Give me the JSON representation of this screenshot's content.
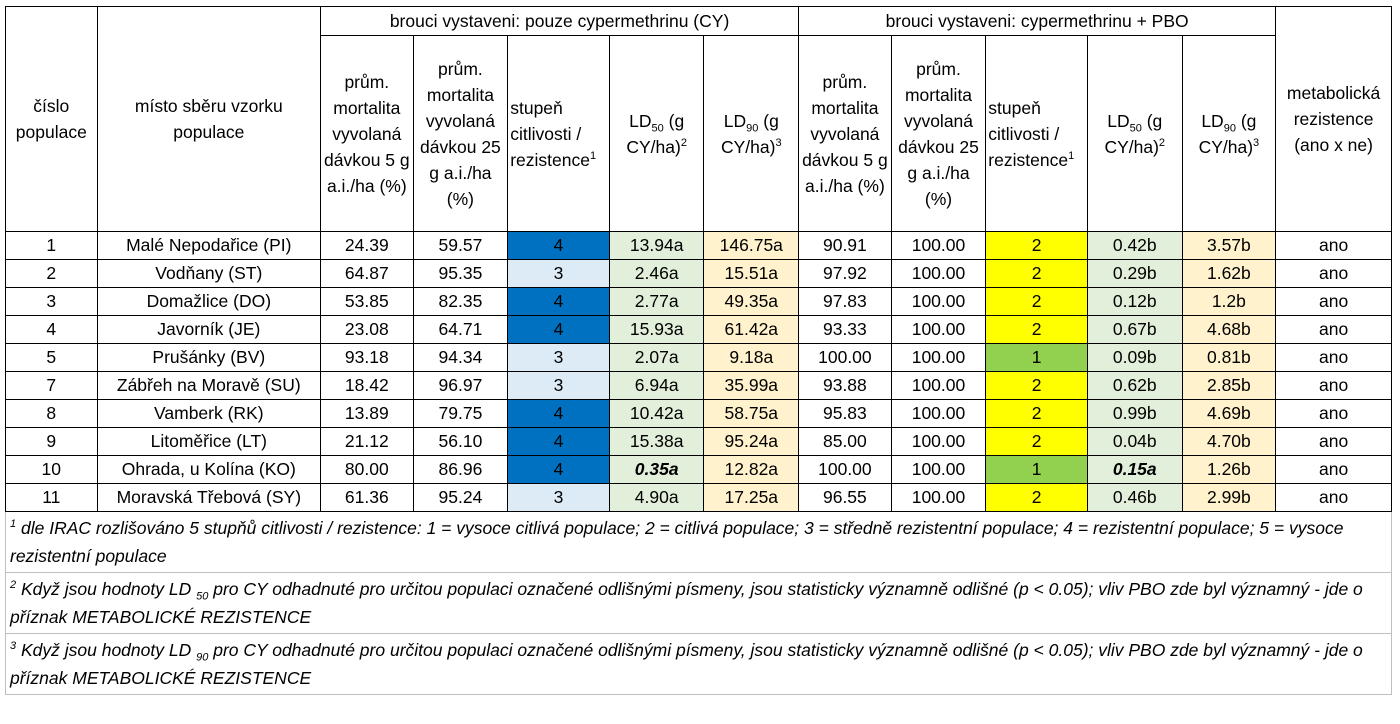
{
  "header": {
    "group_cy": "brouci vystaveni: pouze cypermethrinu (CY)",
    "group_pbo": "brouci vystaveni: cypermethrinu + PBO",
    "col_num": "číslo populace",
    "col_place": "místo sběru vzorku populace",
    "col_mort5": "prům. mortalita vyvolaná dávkou 5 g a.i./ha (%)",
    "col_mort25": "prům. mortalita vyvolaná dávkou 25 g a.i./ha (%)",
    "col_grade": "stupeň citlivosti / rezistence",
    "col_grade_sup": "1",
    "col_ld50_pre": "LD",
    "col_ld50_sub": "50",
    "col_ld50_post": " (g CY/ha)",
    "col_ld50_sup": "2",
    "col_ld90_pre": "LD",
    "col_ld90_sub": "90",
    "col_ld90_post": " (g CY/ha)",
    "col_ld90_sup": "3",
    "col_meta": "metabolická rezistence (ano x ne)"
  },
  "rows": [
    {
      "num": "1",
      "place": "Malé Nepodařice (PI)",
      "m5": "24.39",
      "m25": "59.57",
      "grade": "4",
      "ld50": "13.94a",
      "ld90": "146.75a",
      "pm5": "90.91",
      "pm25": "100.00",
      "pgrade": "2",
      "pld50": "0.42b",
      "pld90": "3.57b",
      "meta": "ano"
    },
    {
      "num": "2",
      "place": "Vodňany (ST)",
      "m5": "64.87",
      "m25": "95.35",
      "grade": "3",
      "ld50": "2.46a",
      "ld90": "15.51a",
      "pm5": "97.92",
      "pm25": "100.00",
      "pgrade": "2",
      "pld50": "0.29b",
      "pld90": "1.62b",
      "meta": "ano"
    },
    {
      "num": "3",
      "place": "Domažlice (DO)",
      "m5": "53.85",
      "m25": "82.35",
      "grade": "4",
      "ld50": "2.77a",
      "ld90": "49.35a",
      "pm5": "97.83",
      "pm25": "100.00",
      "pgrade": "2",
      "pld50": "0.12b",
      "pld90": "1.2b",
      "meta": "ano"
    },
    {
      "num": "4",
      "place": "Javorník (JE)",
      "m5": "23.08",
      "m25": "64.71",
      "grade": "4",
      "ld50": "15.93a",
      "ld90": "61.42a",
      "pm5": "93.33",
      "pm25": "100.00",
      "pgrade": "2",
      "pld50": "0.67b",
      "pld90": "4.68b",
      "meta": "ano"
    },
    {
      "num": "5",
      "place": "Prušánky (BV)",
      "m5": "93.18",
      "m25": "94.34",
      "grade": "3",
      "ld50": "2.07a",
      "ld90": "9.18a",
      "pm5": "100.00",
      "pm25": "100.00",
      "pgrade": "1",
      "pld50": "0.09b",
      "pld90": "0.81b",
      "meta": "ano"
    },
    {
      "num": "7",
      "place": "Zábřeh na Moravě (SU)",
      "m5": "18.42",
      "m25": "96.97",
      "grade": "3",
      "ld50": "6.94a",
      "ld90": "35.99a",
      "pm5": "93.88",
      "pm25": "100.00",
      "pgrade": "2",
      "pld50": "0.62b",
      "pld90": "2.85b",
      "meta": "ano"
    },
    {
      "num": "8",
      "place": "Vamberk (RK)",
      "m5": "13.89",
      "m25": "79.75",
      "grade": "4",
      "ld50": "10.42a",
      "ld90": "58.75a",
      "pm5": "95.83",
      "pm25": "100.00",
      "pgrade": "2",
      "pld50": "0.99b",
      "pld90": "4.69b",
      "meta": "ano"
    },
    {
      "num": "9",
      "place": "Litoměřice (LT)",
      "m5": "21.12",
      "m25": "56.10",
      "grade": "4",
      "ld50": "15.38a",
      "ld90": "95.24a",
      "pm5": "85.00",
      "pm25": "100.00",
      "pgrade": "2",
      "pld50": "0.04b",
      "pld90": "4.70b",
      "meta": "ano"
    },
    {
      "num": "10",
      "place": "Ohrada, u Kolína (KO)",
      "m5": "80.00",
      "m25": "86.96",
      "grade": "4",
      "ld50": "0.35a",
      "ld90": "12.82a",
      "pm5": "100.00",
      "pm25": "100.00",
      "pgrade": "1",
      "pld50": "0.15a",
      "pld90": "1.26b",
      "meta": "ano",
      "highlight_ld50": true
    },
    {
      "num": "11",
      "place": "Moravská Třebová (SY)",
      "m5": "61.36",
      "m25": "95.24",
      "grade": "3",
      "ld50": "4.90a",
      "ld90": "17.25a",
      "pm5": "96.55",
      "pm25": "100.00",
      "pgrade": "2",
      "pld50": "0.46b",
      "pld90": "2.99b",
      "meta": "ano"
    }
  ],
  "footnotes": {
    "f1_sup": "1",
    "f1_text": " dle IRAC rozlišováno 5 stupňů citlivosti / rezistence: 1 = vysoce citlivá populace; 2 = citlivá populace; 3 = středně rezistentní populace; 4 = rezistentní populace; 5 = vysoce rezistentní populace",
    "f2_sup": "2",
    "f2_pre": " Když jsou hodnoty LD ",
    "f2_sub": "50",
    "f2_post": "  pro CY odhadnuté pro určitou populaci označené odlišnými písmeny, jsou statisticky významně odlišné (p  < 0.05); vliv PBO zde byl významný - jde o příznak METABOLICKÉ REZISTENCE",
    "f3_sup": "3",
    "f3_pre": " Když jsou hodnoty LD ",
    "f3_sub": "90",
    "f3_post": "  pro CY odhadnuté pro určitou populaci označené odlišnými písmeny, jsou statisticky významně odlišné (p  < 0.05); vliv PBO zde byl významný - jde o příznak METABOLICKÉ REZISTENCE"
  },
  "colors": {
    "grade4": "#0070c0",
    "grade3": "#ddebf7",
    "ld50_bg": "#e2efda",
    "ld90_bg": "#fff2cc",
    "pbo_grade2": "#ffff00",
    "pbo_grade1": "#92d050"
  }
}
